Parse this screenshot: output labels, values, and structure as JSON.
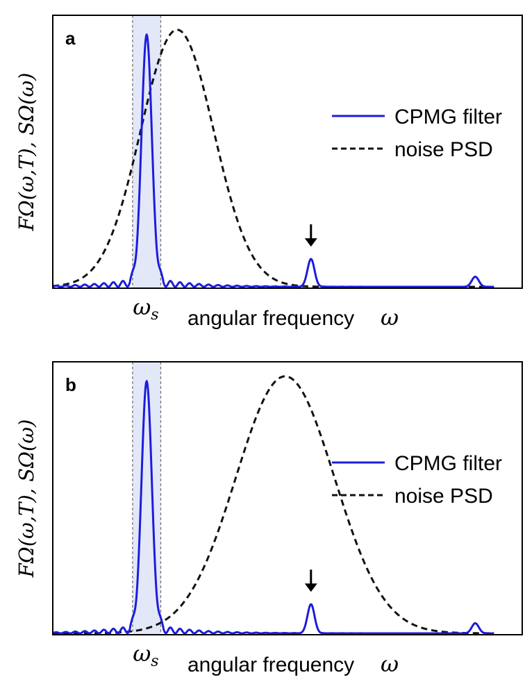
{
  "chart_data": [
    {
      "type": "line",
      "panel_label": "a",
      "xlabel": "angular frequency",
      "xlabel_symbol": "ω",
      "ylabel": "FΩ(ω,T),  SΩ(ω)",
      "x_tick": {
        "label": "ω",
        "sub": "s",
        "value": 0.2
      },
      "xlim": [
        0,
        1
      ],
      "ylim": [
        0,
        1.05
      ],
      "legend": {
        "placement": "right-middle",
        "entries": [
          "CPMG filter",
          "noise PSD"
        ]
      },
      "band": {
        "x0": 0.17,
        "x1": 0.23
      },
      "arrow_x": 0.55,
      "series": [
        {
          "name": "CPMG filter",
          "color": "#1c1cdc",
          "style": "solid",
          "peaks": [
            {
              "x": 0.2,
              "height": 1.0,
              "width": 0.011
            },
            {
              "x": 0.55,
              "height": 0.11,
              "width": 0.0075
            },
            {
              "x": 0.9,
              "height": 0.04,
              "width": 0.0075
            }
          ],
          "sidelobe_period": 0.0203,
          "sidelobe_spread": 0.085
        },
        {
          "name": "noise PSD",
          "color": "#111111",
          "style": "dashed",
          "center": 0.265,
          "width": 0.078,
          "height": 1.02
        }
      ]
    },
    {
      "type": "line",
      "panel_label": "b",
      "xlabel": "angular frequency",
      "xlabel_symbol": "ω",
      "ylabel": "FΩ(ω,T),  SΩ(ω)",
      "x_tick": {
        "label": "ω",
        "sub": "s",
        "value": 0.2
      },
      "xlim": [
        0,
        1
      ],
      "ylim": [
        0,
        1.05
      ],
      "legend": {
        "placement": "right-middle",
        "entries": [
          "CPMG filter",
          "noise PSD"
        ]
      },
      "band": {
        "x0": 0.17,
        "x1": 0.23
      },
      "arrow_x": 0.55,
      "series": [
        {
          "name": "CPMG filter",
          "color": "#1c1cdc",
          "style": "solid",
          "peaks": [
            {
              "x": 0.2,
              "height": 1.0,
              "width": 0.011
            },
            {
              "x": 0.55,
              "height": 0.115,
              "width": 0.0075
            },
            {
              "x": 0.9,
              "height": 0.04,
              "width": 0.0075
            }
          ],
          "sidelobe_period": 0.0203,
          "sidelobe_spread": 0.085
        },
        {
          "name": "noise PSD",
          "color": "#111111",
          "style": "dashed",
          "center": 0.495,
          "width": 0.105,
          "height": 1.02
        }
      ]
    }
  ]
}
